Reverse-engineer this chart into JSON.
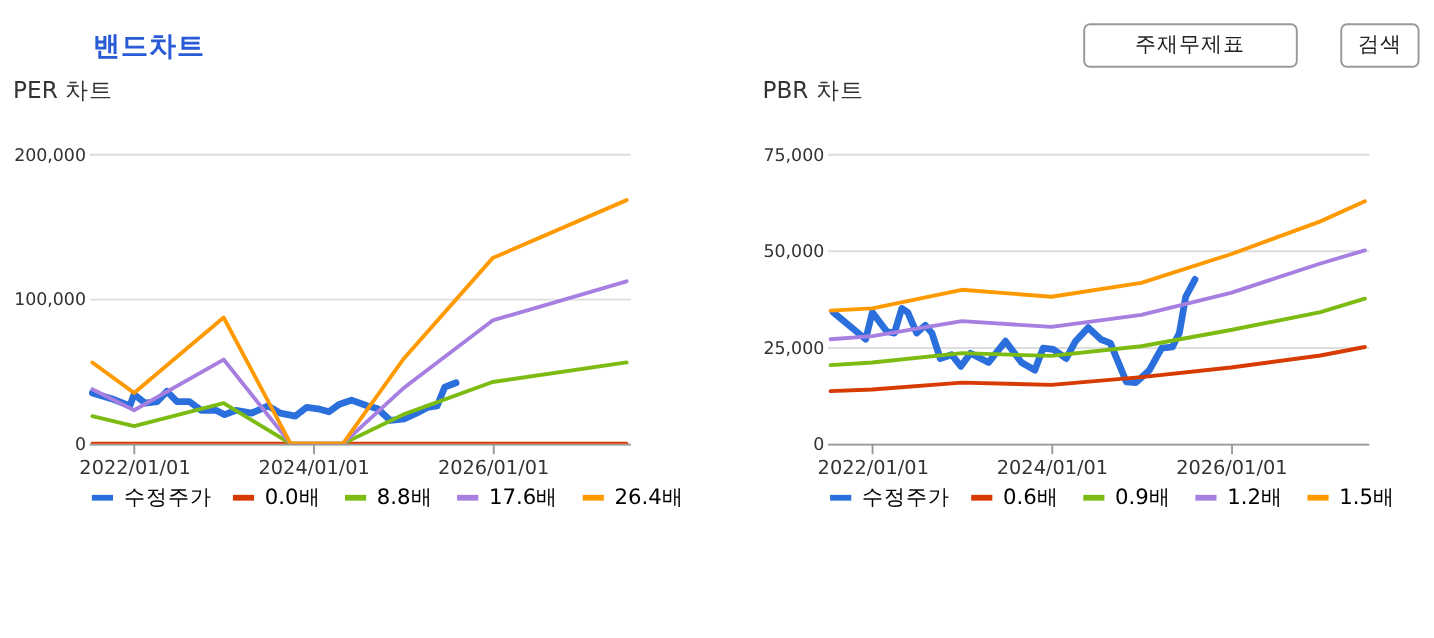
{
  "chart_data": [
    {
      "type": "line",
      "title": "PER 차트",
      "annotations": [
        "밴드차트",
        "주재무제표",
        "검색"
      ],
      "legend": "bottom",
      "grid": "y",
      "marker": "none",
      "line_style": "solid",
      "xlim": [
        "2021-07-01",
        "2027-07-15"
      ],
      "xticks": [
        {
          "value": "2022-01-01",
          "label": "2022/01/01"
        },
        {
          "value": "2024-01-01",
          "label": "2024/01/01"
        },
        {
          "value": "2026-01-01",
          "label": "2026/01/01"
        }
      ],
      "ylim": [
        0,
        200000
      ],
      "yticks": [
        {
          "value": 0,
          "label": "0"
        },
        {
          "value": 100000,
          "label": "100,000"
        },
        {
          "value": 200000,
          "label": "200,000"
        }
      ],
      "series": [
        {
          "name": "수정주가",
          "color": "#2a6fdb",
          "x": [
            "2021-07-15",
            "2021-10-01",
            "2021-12-15",
            "2022-01-01",
            "2022-02-15",
            "2022-04-05",
            "2022-05-15",
            "2022-06-25",
            "2022-08-15",
            "2022-10-01",
            "2022-12-01",
            "2023-01-05",
            "2023-02-20",
            "2023-04-25",
            "2023-07-01",
            "2023-08-20",
            "2023-10-20",
            "2023-12-05",
            "2024-01-20",
            "2024-03-05",
            "2024-04-15",
            "2024-06-05",
            "2024-08-10",
            "2024-09-20",
            "2024-11-10",
            "2025-01-05",
            "2025-02-25",
            "2025-04-10",
            "2025-05-20",
            "2025-06-20",
            "2025-08-05"
          ],
          "values": [
            35000,
            31000,
            26000,
            34000,
            28000,
            29000,
            36000,
            29000,
            29000,
            23000,
            23000,
            20000,
            23000,
            21000,
            26000,
            21000,
            19000,
            25000,
            24000,
            22000,
            27000,
            30000,
            26000,
            24000,
            16000,
            17000,
            21000,
            25000,
            26000,
            39000,
            42000
          ]
        },
        {
          "name": "0.0배",
          "color": "#d83b01",
          "x": [
            "2021-07-15",
            "2022-01-01",
            "2023-01-01",
            "2023-10-01",
            "2024-05-01",
            "2025-01-01",
            "2026-01-01",
            "2027-07-01"
          ],
          "values": [
            0,
            0,
            0,
            0,
            0,
            0,
            0,
            0
          ]
        },
        {
          "name": "8.8배",
          "color": "#7cbb12",
          "x": [
            "2021-07-15",
            "2022-01-01",
            "2023-01-01",
            "2023-10-01",
            "2024-05-01",
            "2025-01-01",
            "2026-01-01",
            "2027-07-01"
          ],
          "values": [
            19000,
            12000,
            28000,
            0,
            0,
            20000,
            42500,
            56000
          ]
        },
        {
          "name": "17.6배",
          "color": "#a77fe0",
          "x": [
            "2021-07-15",
            "2022-01-01",
            "2023-01-01",
            "2023-10-01",
            "2024-05-01",
            "2025-01-01",
            "2026-01-01",
            "2027-07-01"
          ],
          "values": [
            37500,
            23000,
            58000,
            0,
            0,
            38000,
            85000,
            112000
          ]
        },
        {
          "name": "26.4배",
          "color": "#ff9900",
          "x": [
            "2021-07-15",
            "2022-01-01",
            "2023-01-01",
            "2023-10-01",
            "2024-05-01",
            "2025-01-01",
            "2026-01-01",
            "2027-07-01"
          ],
          "values": [
            56000,
            35000,
            87000,
            0,
            0,
            58000,
            128000,
            168000
          ]
        }
      ]
    },
    {
      "type": "line",
      "title": "PBR 차트",
      "legend": "bottom",
      "grid": "y",
      "marker": "none",
      "line_style": "solid",
      "xlim": [
        "2021-07-01",
        "2027-07-15"
      ],
      "xticks": [
        {
          "value": "2022-01-01",
          "label": "2022/01/01"
        },
        {
          "value": "2024-01-01",
          "label": "2024/01/01"
        },
        {
          "value": "2026-01-01",
          "label": "2026/01/01"
        }
      ],
      "ylim": [
        0,
        75000
      ],
      "yticks": [
        {
          "value": 0,
          "label": "0"
        },
        {
          "value": 25000,
          "label": "25,000"
        },
        {
          "value": 50000,
          "label": "50,000"
        },
        {
          "value": 75000,
          "label": "75,000"
        }
      ],
      "series": [
        {
          "name": "수정주가",
          "color": "#2a6fdb",
          "x": [
            "2021-07-25",
            "2021-12-05",
            "2022-01-01",
            "2022-03-01",
            "2022-04-01",
            "2022-05-01",
            "2022-05-25",
            "2022-07-01",
            "2022-08-05",
            "2022-09-01",
            "2022-10-05",
            "2022-11-20",
            "2022-12-28",
            "2023-02-05",
            "2023-04-20",
            "2023-06-28",
            "2023-09-01",
            "2023-10-25",
            "2023-11-28",
            "2024-01-08",
            "2024-03-01",
            "2024-04-08",
            "2024-05-30",
            "2024-07-20",
            "2024-08-28",
            "2024-11-01",
            "2024-12-10",
            "2025-02-03",
            "2025-03-25",
            "2025-05-08",
            "2025-06-05",
            "2025-07-01",
            "2025-08-08"
          ],
          "values": [
            34000,
            27000,
            34000,
            29000,
            28600,
            35000,
            34000,
            28600,
            30600,
            28600,
            22000,
            23000,
            20000,
            23400,
            21000,
            26500,
            21000,
            19000,
            24700,
            24400,
            22000,
            26500,
            30000,
            27000,
            26000,
            16000,
            15800,
            19000,
            24700,
            25000,
            28600,
            38000,
            42500
          ]
        },
        {
          "name": "0.6배",
          "color": "#d83b01",
          "x": [
            "2021-07-15",
            "2022-01-01",
            "2023-01-01",
            "2024-01-01",
            "2025-01-01",
            "2026-01-01",
            "2027-01-01",
            "2027-07-01"
          ],
          "values": [
            13600,
            14000,
            15800,
            15200,
            17200,
            19700,
            22800,
            25000
          ]
        },
        {
          "name": "0.9배",
          "color": "#7cbb12",
          "x": [
            "2021-07-15",
            "2022-01-01",
            "2023-01-01",
            "2024-01-01",
            "2025-01-01",
            "2026-01-01",
            "2027-01-01",
            "2027-07-01"
          ],
          "values": [
            20300,
            21000,
            23400,
            22700,
            25200,
            29400,
            34000,
            37500
          ]
        },
        {
          "name": "1.2배",
          "color": "#a77fe0",
          "x": [
            "2021-07-15",
            "2022-01-01",
            "2023-01-01",
            "2024-01-01",
            "2025-01-01",
            "2026-01-01",
            "2027-01-01",
            "2027-07-01"
          ],
          "values": [
            27000,
            27800,
            31700,
            30200,
            33300,
            39000,
            46600,
            50000
          ]
        },
        {
          "name": "1.5배",
          "color": "#ff9900",
          "x": [
            "2021-07-15",
            "2022-01-01",
            "2023-01-01",
            "2024-01-01",
            "2025-01-01",
            "2026-01-01",
            "2027-01-01",
            "2027-07-01"
          ],
          "values": [
            34400,
            35000,
            39800,
            38000,
            41600,
            49000,
            57500,
            62700
          ]
        }
      ]
    }
  ]
}
